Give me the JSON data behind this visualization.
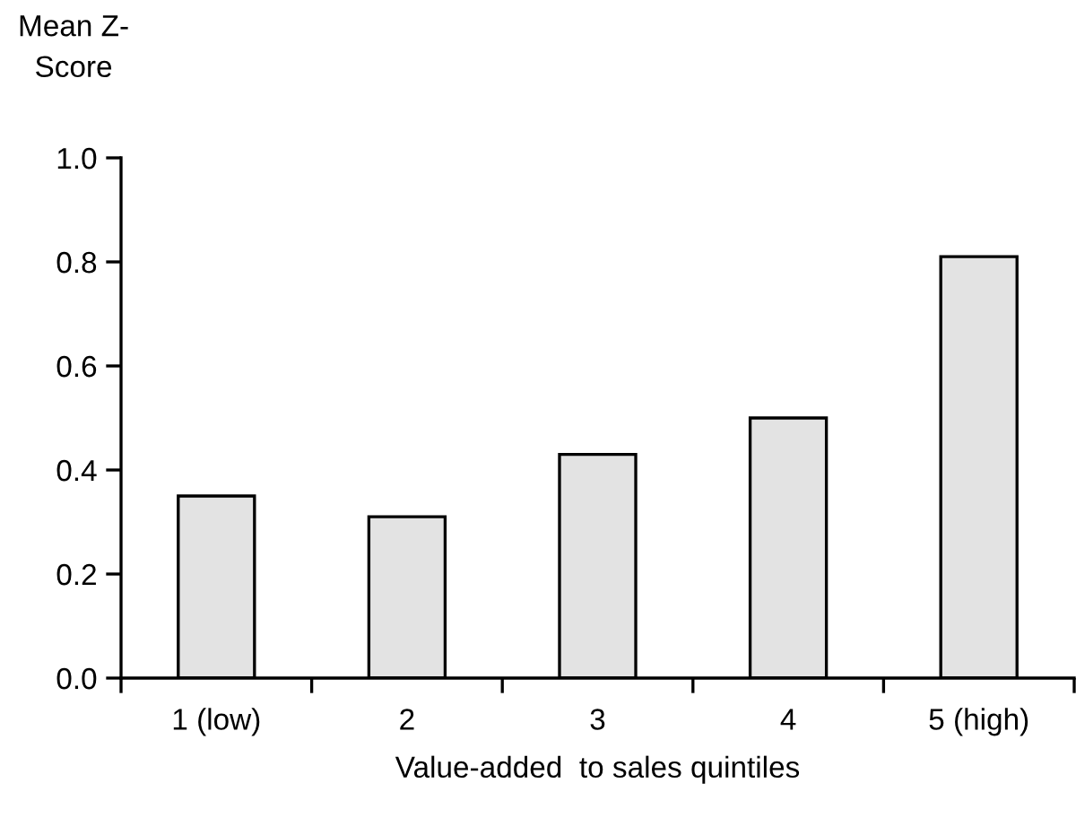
{
  "chart_data": {
    "type": "bar",
    "ylabel": "Mean Z-\nScore",
    "xlabel": "Value-added  to sales quintiles",
    "categories": [
      "1 (low)",
      "2",
      "3",
      "4",
      "5 (high)"
    ],
    "values": [
      0.35,
      0.31,
      0.43,
      0.5,
      0.81
    ],
    "color": "#e3e3e3",
    "ylim": [
      0,
      1.0
    ],
    "yticks": [
      {
        "value": 0,
        "label": "0.0"
      },
      {
        "value": 0.2,
        "label": "0.2"
      },
      {
        "value": 0.4,
        "label": "0.4"
      },
      {
        "value": 0.6,
        "label": "0.6"
      },
      {
        "value": 0.8,
        "label": "0.8"
      },
      {
        "value": 1.0,
        "label": "1.0"
      }
    ],
    "grid": false,
    "legend": false
  }
}
